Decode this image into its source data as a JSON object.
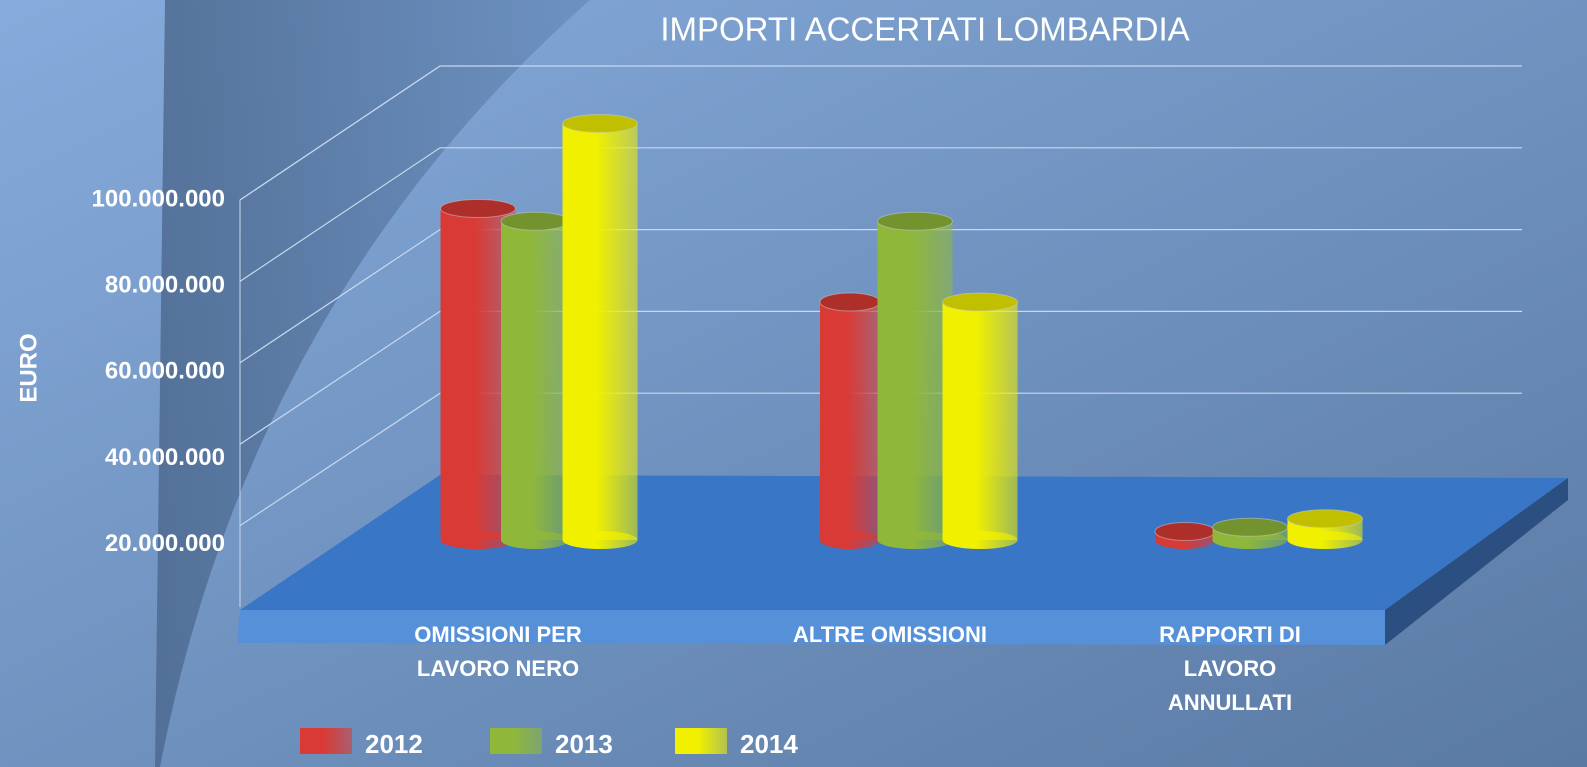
{
  "chart_data": {
    "type": "bar3d",
    "title": "IMPORTI ACCERTATI LOMBARDIA",
    "y_label": "EURO",
    "categories": [
      "OMISSIONI PER LAVORO NERO",
      "ALTRE OMISSIONI",
      "RAPPORTI DI LAVORO ANNULLATI"
    ],
    "series": [
      {
        "name": "2012",
        "color": "#d93a35",
        "values": [
          78000000,
          56000000,
          2000000
        ]
      },
      {
        "name": "2013",
        "color": "#8fb83a",
        "values": [
          75000000,
          75000000,
          3000000
        ]
      },
      {
        "name": "2014",
        "color": "#f0f000",
        "values": [
          98000000,
          56000000,
          5000000
        ]
      }
    ],
    "ylim": [
      0,
      100000000
    ],
    "yticks": [
      {
        "value": 20000000,
        "label": "20.000.000"
      },
      {
        "value": 40000000,
        "label": "40.000.000"
      },
      {
        "value": 60000000,
        "label": "60.000.000"
      },
      {
        "value": 80000000,
        "label": "80.000.000"
      },
      {
        "value": 100000000,
        "label": "100.000.000"
      }
    ],
    "grid": true
  }
}
